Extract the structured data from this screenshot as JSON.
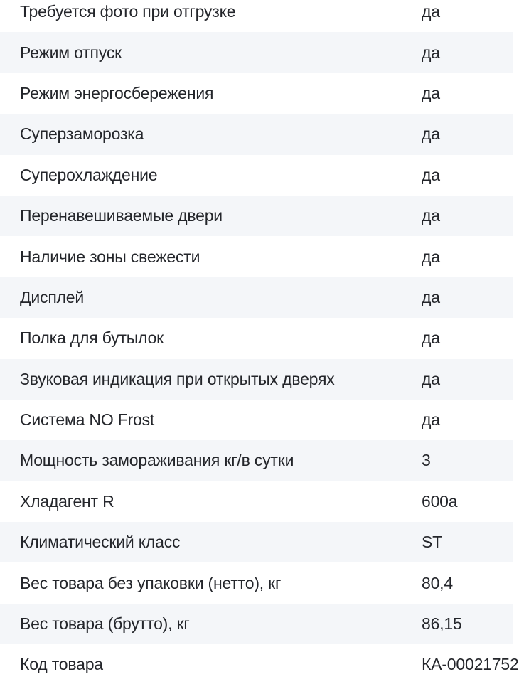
{
  "specs_table": {
    "colors": {
      "row_bg": "#ffffff",
      "row_alt_bg": "#f4f6f9",
      "text": "#24262b"
    },
    "rows": [
      {
        "label": "Требуется фото при отгрузке",
        "value": "да"
      },
      {
        "label": "Режим отпуск",
        "value": "да"
      },
      {
        "label": "Режим энергосбережения",
        "value": "да"
      },
      {
        "label": "Суперзаморозка",
        "value": "да"
      },
      {
        "label": "Суперохлаждение",
        "value": "да"
      },
      {
        "label": "Перенавешиваемые двери",
        "value": "да"
      },
      {
        "label": "Наличие зоны свежести",
        "value": "да"
      },
      {
        "label": "Дисплей",
        "value": "да"
      },
      {
        "label": "Полка для бутылок",
        "value": "да"
      },
      {
        "label": "Звуковая индикация при открытых дверях",
        "value": "да"
      },
      {
        "label": "Система NO Frost",
        "value": "да"
      },
      {
        "label": "Мощность замораживания кг/в сутки",
        "value": "3"
      },
      {
        "label": "Хладагент R",
        "value": "600a"
      },
      {
        "label": "Климатический класс",
        "value": "ST"
      },
      {
        "label": "Вес товара без упаковки (нетто), кг",
        "value": "80,4"
      },
      {
        "label": "Вес товара (брутто), кг",
        "value": "86,15"
      },
      {
        "label": "Код товара",
        "value": "КА-00021752"
      }
    ]
  }
}
